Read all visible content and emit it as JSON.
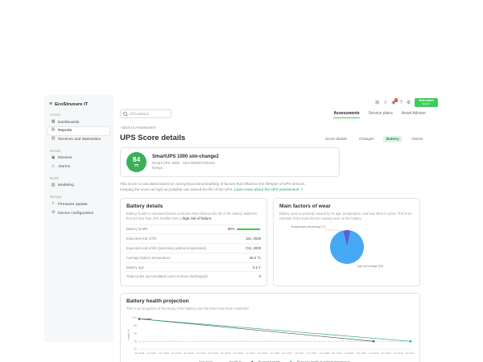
{
  "topbar": {
    "icons": [
      {
        "id": "apps",
        "glyph": "⊞"
      },
      {
        "id": "export",
        "glyph": "⇩"
      },
      {
        "id": "notifications",
        "glyph": "◉",
        "badge": "9"
      },
      {
        "id": "help",
        "glyph": "?"
      },
      {
        "id": "settings",
        "glyph": "⚙"
      }
    ],
    "brand_line1": "Schneider",
    "brand_line2": "Electric"
  },
  "sidebar": {
    "logo": "EcoStruxure IT",
    "sections": [
      {
        "label": "Assess",
        "items": [
          {
            "id": "dashboards",
            "label": "Dashboards",
            "glyph": "▦"
          },
          {
            "id": "reports",
            "label": "Reports",
            "glyph": "▤",
            "active": true
          },
          {
            "id": "services-warranties",
            "label": "Services and Warranties",
            "glyph": "▥"
          }
        ]
      },
      {
        "label": "Monitor",
        "items": [
          {
            "id": "devices",
            "label": "Devices",
            "glyph": "▣"
          },
          {
            "id": "alarms",
            "label": "Alarms",
            "glyph": "△"
          }
        ]
      },
      {
        "label": "Model",
        "items": [
          {
            "id": "modeling",
            "label": "Modeling",
            "glyph": "▧"
          }
        ]
      },
      {
        "label": "Manage",
        "items": [
          {
            "id": "firmware-update",
            "label": "Firmware update",
            "glyph": "⇩"
          },
          {
            "id": "device-configuration",
            "label": "Device configuration",
            "glyph": "⚙"
          }
        ]
      }
    ]
  },
  "header": {
    "search_placeholder": "All locations",
    "back_link": "‹ Back to Assessment",
    "title": "UPS Score details",
    "tabs": [
      {
        "id": "assessments",
        "label": "Assessments",
        "active": true
      },
      {
        "id": "service-plans",
        "label": "Service plans"
      },
      {
        "id": "asset-advisor",
        "label": "Asset Advisor"
      }
    ],
    "subtabs": [
      {
        "id": "score-details",
        "label": "Score details"
      },
      {
        "id": "changes",
        "label": "Changes"
      },
      {
        "id": "battery",
        "label": "Battery",
        "active": true
      },
      {
        "id": "alarms",
        "label": "Alarms"
      }
    ]
  },
  "score_card": {
    "score": "84",
    "score_max": "100",
    "device_name": "SmartUPS 1000 sim-change2",
    "device_info": "Smart-UPS 1000 · 3S4-00036TA00410",
    "location": "Kenya",
    "description_line1": "This score is calculated based on anonymous benchmarking of factors that influence the lifespan of UPS devices.",
    "description_line2": "Keeping the score as high as possible can extend the life of the UPS.",
    "link_label": "Learn more about the UPS assessment ↗"
  },
  "battery_details": {
    "title": "Battery details",
    "description_pre": "Battery health is calculated based on factors that influence the life of the battery. Batteries that are less than 40% healthy have a ",
    "description_bold": "high risk of failure.",
    "rows": [
      {
        "label": "Battery health",
        "value": "96%",
        "bar": 96
      },
      {
        "label": "Expected end of life",
        "value": "Jan, 2029"
      },
      {
        "label": "Expected end of life (assuming optimal temperature)",
        "value": "Oct, 2029"
      },
      {
        "label": "Average battery temperature",
        "value": "26.6 °C"
      },
      {
        "label": "Battery age",
        "value": "0.2 Y"
      },
      {
        "label": "Total cycles (accumulated count of times discharged)",
        "value": "0"
      }
    ]
  },
  "wear": {
    "title": "Main factors of wear",
    "description": "Battery wear is primarily caused by its age, temperature, and how often it cycles. This is an estimate of the main factors causing wear on the battery."
  },
  "projection": {
    "title": "Battery health projection",
    "description": "This is our projection of the decay of the battery over the time it has been monitored."
  },
  "chart_data": [
    {
      "type": "pie",
      "title": "Main factors of wear",
      "slices": [
        {
          "id": "temperature",
          "label": "Temperature percentage",
          "value": 7,
          "color": "#5B5FD4"
        },
        {
          "id": "age",
          "label": "Age percentage",
          "value": 93,
          "color": "#45A9F5"
        }
      ]
    },
    {
      "type": "line",
      "title": "Battery health projection",
      "ylabel": "Health %",
      "ylim": [
        20,
        100
      ],
      "yticks": [
        100,
        80,
        60,
        40,
        20
      ],
      "x": [
        "Apr 2024",
        "Jul 2024",
        "Oct 2024",
        "Jan 2025",
        "Apr 2025",
        "Jul 2025",
        "Oct 2025",
        "Jan 2026",
        "Apr 2026",
        "Jul 2026",
        "Oct 2026",
        "Jan 2027",
        "Apr 2027",
        "Jul 2027",
        "Oct 2027",
        "Jan 2028",
        "Apr 2028",
        "Jul 2028",
        "Oct 2028",
        "Jan 2029",
        "Apr 2029",
        "Jul 2029",
        "Oct 2029"
      ],
      "legend_position": "bottom",
      "series": [
        {
          "name": "End of life",
          "color": "#BCBCBC",
          "style": "dashed",
          "legend": "dash",
          "points": [
            [
              "Apr 2024",
              40
            ],
            [
              "Oct 2029",
              40
            ]
          ]
        },
        {
          "name": "Health %",
          "color": "#3C4B54",
          "style": "solid",
          "legend": "line",
          "marker": "start",
          "points": [
            [
              "Apr 2024",
              97
            ],
            [
              "Jul 2024",
              96.6
            ]
          ]
        },
        {
          "name": "Projected health",
          "color": "#4A5A63",
          "style": "solid",
          "legend": "diamond",
          "marker": "end",
          "points": [
            [
              "Apr 2024",
              97
            ],
            [
              "Jan 2029",
              40
            ]
          ]
        },
        {
          "name": "Projected health at optimal temperature",
          "color": "#2FA98C",
          "style": "solid",
          "legend": "diamond",
          "marker": "end",
          "points": [
            [
              "Apr 2024",
              97
            ],
            [
              "Oct 2029",
              40
            ]
          ]
        }
      ]
    }
  ]
}
